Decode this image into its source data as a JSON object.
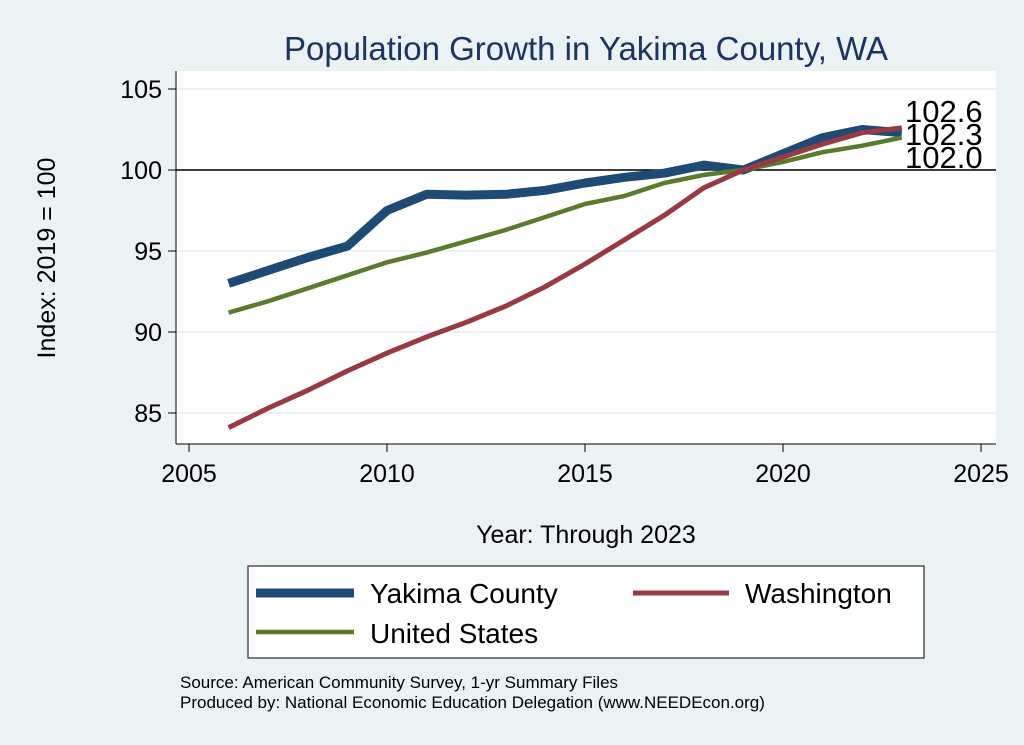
{
  "chart_data": {
    "type": "line",
    "title": "Population Growth in Yakima County, WA",
    "xlabel": "Year: Through 2023",
    "ylabel": "Index: 2019 = 100",
    "xlim": [
      2005,
      2025
    ],
    "ylim": [
      83,
      106
    ],
    "xticks": [
      2005,
      2010,
      2015,
      2020,
      2025
    ],
    "yticks": [
      85,
      90,
      95,
      100,
      105
    ],
    "xtick_labels": [
      "2005",
      "2010",
      "2015",
      "2020",
      "2025"
    ],
    "ytick_labels": [
      "85",
      "90",
      "95",
      "100",
      "105"
    ],
    "reference_line": 100,
    "grid": true,
    "legend_position": "bottom",
    "x": [
      2006,
      2007,
      2008,
      2009,
      2010,
      2011,
      2012,
      2013,
      2014,
      2015,
      2016,
      2017,
      2018,
      2019,
      2020,
      2021,
      2022,
      2023
    ],
    "series": [
      {
        "name": "Yakima  County",
        "color": "#1f4a74",
        "values": [
          93.0,
          93.8,
          94.6,
          95.3,
          97.5,
          98.5,
          98.45,
          98.5,
          98.75,
          99.2,
          99.55,
          99.8,
          100.3,
          100.0,
          101.0,
          102.0,
          102.5,
          102.3
        ]
      },
      {
        "name": "Washington",
        "color": "#973a43",
        "values": [
          84.1,
          85.3,
          86.4,
          87.6,
          88.7,
          89.7,
          90.6,
          91.6,
          92.8,
          94.2,
          95.7,
          97.2,
          98.9,
          100.0,
          100.8,
          101.6,
          102.3,
          102.6
        ]
      },
      {
        "name": "United States",
        "color": "#5a7a2e",
        "values": [
          91.2,
          91.9,
          92.7,
          93.5,
          94.3,
          94.9,
          95.6,
          96.3,
          97.1,
          97.9,
          98.4,
          99.2,
          99.7,
          100.0,
          100.5,
          101.1,
          101.5,
          102.0
        ]
      }
    ],
    "end_labels": [
      "102.6",
      "102.3",
      "102.0"
    ]
  },
  "source_lines": [
    "Source: American Community Survey, 1-yr Summary Files",
    "Produced by: National Economic Education Delegation (www.NEEDEcon.org)"
  ]
}
